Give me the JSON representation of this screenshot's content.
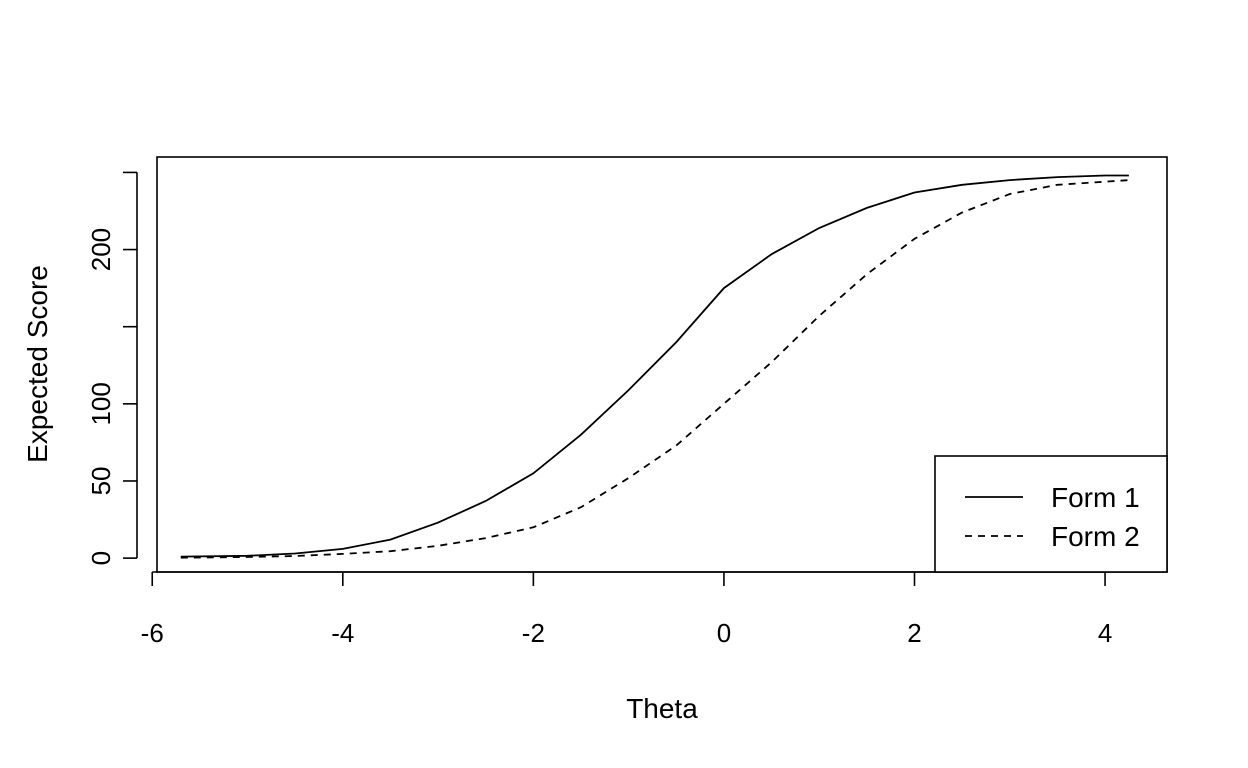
{
  "chart_data": {
    "type": "line",
    "xlabel": "Theta",
    "ylabel": "Expected Score",
    "xlim": [
      -5.95,
      4.65
    ],
    "ylim": [
      -9,
      260
    ],
    "xticks": [
      -6,
      -4,
      -2,
      0,
      2,
      4
    ],
    "xtick_labels": [
      "-6",
      "-4",
      "-2",
      "0",
      "2",
      "4"
    ],
    "yticks": [
      0,
      50,
      100,
      150,
      200,
      250
    ],
    "ytick_labels": [
      "0",
      "50",
      "100",
      "",
      "200",
      ""
    ],
    "legend": {
      "position": "bottom-right",
      "entries": [
        {
          "label": "Form 1",
          "line_style": "solid"
        },
        {
          "label": "Form 2",
          "line_style": "dashed"
        }
      ]
    },
    "series": [
      {
        "name": "Form 1",
        "line_style": "solid",
        "color": "#000000",
        "x": [
          -5.7,
          -5.0,
          -4.5,
          -4.0,
          -3.5,
          -3.0,
          -2.5,
          -2.0,
          -1.5,
          -1.0,
          -0.5,
          0.0,
          0.5,
          1.0,
          1.5,
          2.0,
          2.5,
          3.0,
          3.5,
          4.0,
          4.25
        ],
        "y": [
          1,
          1.5,
          3,
          6,
          12,
          23,
          37,
          55,
          80,
          109,
          140,
          175,
          197,
          214,
          227,
          237,
          242,
          245,
          247,
          248,
          248
        ]
      },
      {
        "name": "Form 2",
        "line_style": "dashed",
        "color": "#000000",
        "x": [
          -5.7,
          -5.0,
          -4.5,
          -4.0,
          -3.5,
          -3.0,
          -2.5,
          -2.0,
          -1.5,
          -1.0,
          -0.5,
          0.0,
          0.5,
          1.0,
          1.5,
          2.0,
          2.5,
          3.0,
          3.5,
          4.0,
          4.25
        ],
        "y": [
          0.3,
          0.7,
          1.4,
          2.7,
          4.5,
          8,
          13,
          20,
          33,
          52,
          73,
          100,
          127,
          157,
          184,
          207,
          224,
          236,
          242,
          244,
          245
        ]
      }
    ]
  }
}
